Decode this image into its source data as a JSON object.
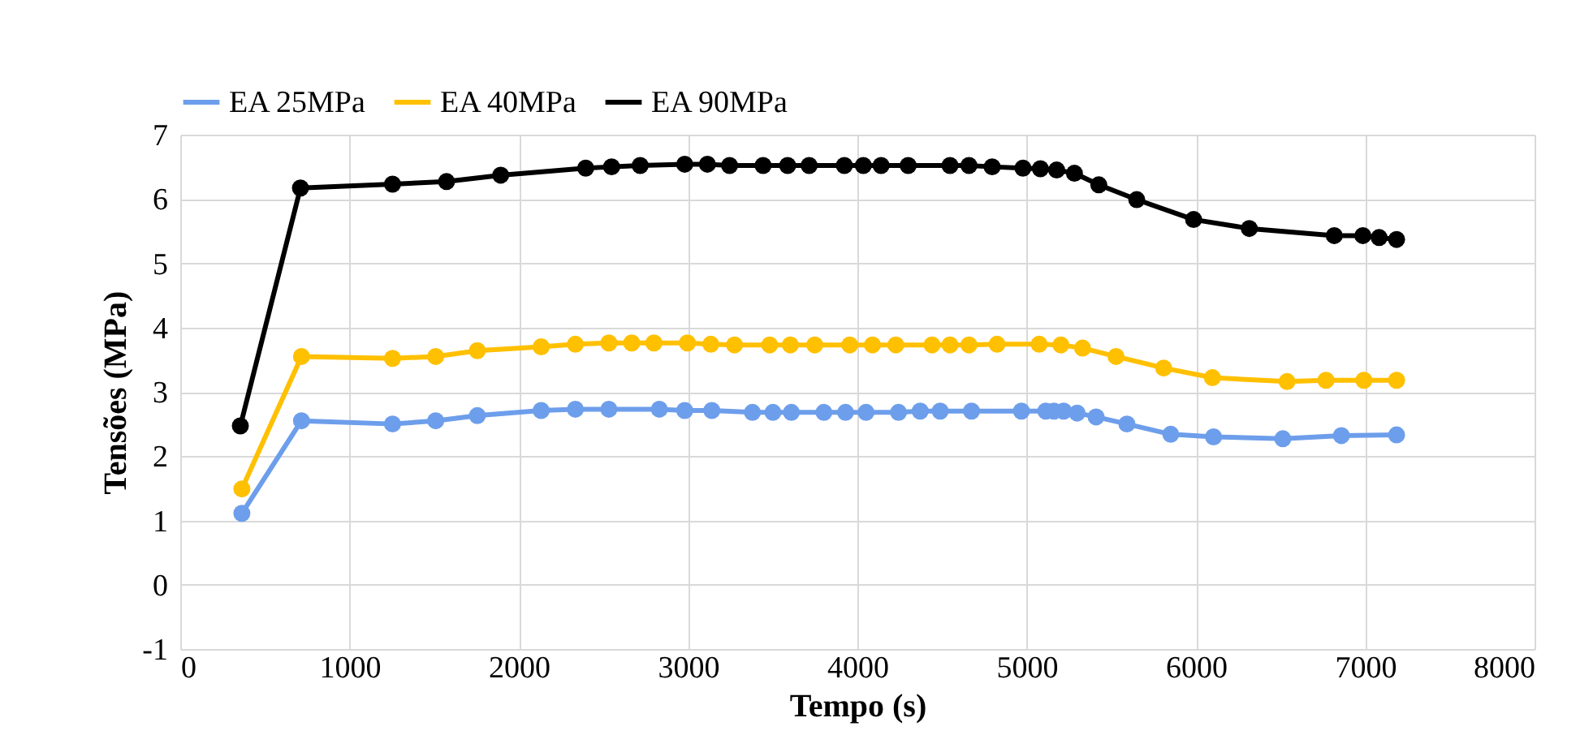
{
  "chart_data": {
    "type": "line",
    "xlabel": "Tempo (s)",
    "ylabel": "Tensões (MPa)",
    "xlim": [
      0,
      8000
    ],
    "xticks": [
      0,
      1000,
      2000,
      3000,
      4000,
      5000,
      6000,
      7000,
      8000
    ],
    "ylim": [
      -1,
      7
    ],
    "yticks": [
      -1,
      0,
      1,
      2,
      3,
      4,
      5,
      6,
      7
    ],
    "grid": true,
    "legend": "top",
    "marker": "circle",
    "line_style": "solid",
    "series": [
      {
        "name": "EA 25MPa",
        "color": "#6d9eeb",
        "x": [
          364,
          716,
          1254,
          1509,
          1755,
          2132,
          2334,
          2532,
          2830,
          2980,
          3140,
          3380,
          3501,
          3610,
          3802,
          3930,
          4051,
          4243,
          4371,
          4489,
          4674,
          4969,
          5113,
          5161,
          5218,
          5298,
          5410,
          5592,
          5851,
          6104,
          6513,
          6859,
          7185
        ],
        "values": [
          1.11,
          2.55,
          2.5,
          2.55,
          2.63,
          2.71,
          2.73,
          2.73,
          2.73,
          2.71,
          2.71,
          2.68,
          2.68,
          2.68,
          2.68,
          2.68,
          2.68,
          2.68,
          2.7,
          2.7,
          2.7,
          2.7,
          2.7,
          2.7,
          2.7,
          2.67,
          2.61,
          2.5,
          2.34,
          2.3,
          2.27,
          2.32,
          2.33
        ]
      },
      {
        "name": "EA 40MPa",
        "color": "#ffc000",
        "x": [
          364,
          716,
          1254,
          1509,
          1755,
          2132,
          2334,
          2532,
          2667,
          2798,
          2996,
          3134,
          3274,
          3482,
          3604,
          3748,
          3955,
          4089,
          4227,
          4441,
          4547,
          4659,
          4825,
          5074,
          5202,
          5330,
          5528,
          5809,
          6097,
          6538,
          6768,
          6992,
          7185
        ],
        "values": [
          1.49,
          3.55,
          3.52,
          3.55,
          3.64,
          3.7,
          3.74,
          3.76,
          3.76,
          3.76,
          3.76,
          3.74,
          3.73,
          3.73,
          3.73,
          3.73,
          3.73,
          3.73,
          3.73,
          3.73,
          3.73,
          3.73,
          3.74,
          3.74,
          3.73,
          3.68,
          3.55,
          3.37,
          3.22,
          3.16,
          3.18,
          3.18,
          3.18
        ]
      },
      {
        "name": "EA 90MPa",
        "color": "#000000",
        "x": [
          355,
          710,
          1254,
          1573,
          1893,
          2395,
          2548,
          2717,
          2980,
          3114,
          3245,
          3443,
          3588,
          3715,
          3923,
          4035,
          4140,
          4300,
          4547,
          4659,
          4796,
          4978,
          5081,
          5177,
          5282,
          5426,
          5650,
          5986,
          6315,
          6817,
          6986,
          7082,
          7185
        ],
        "values": [
          2.47,
          6.17,
          6.23,
          6.27,
          6.37,
          6.48,
          6.5,
          6.52,
          6.54,
          6.54,
          6.52,
          6.52,
          6.52,
          6.52,
          6.52,
          6.52,
          6.52,
          6.52,
          6.52,
          6.52,
          6.5,
          6.48,
          6.47,
          6.45,
          6.4,
          6.22,
          5.99,
          5.68,
          5.54,
          5.43,
          5.43,
          5.4,
          5.37
        ]
      }
    ]
  }
}
